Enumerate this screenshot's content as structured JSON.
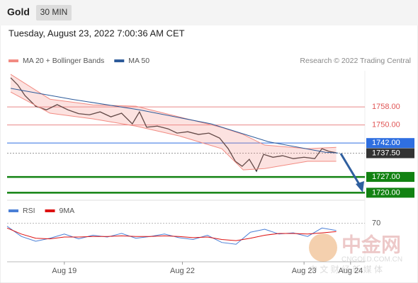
{
  "header": {
    "title": "Gold",
    "timeframe": "30 MIN",
    "timestamp": "Tuesday, August 23, 2022 7:00:36 AM CET",
    "credit": "Research © 2022 Trading Central"
  },
  "watermark": {
    "logo": "中金网",
    "url": "CNGOLD.COM.CN",
    "slogan": "中 文 财 经 新 媒 体"
  },
  "chart_data": [
    {
      "type": "line",
      "xlim": [
        0,
        100
      ],
      "ylim": [
        1717,
        1774
      ],
      "series": [
        {
          "color": "#333333",
          "x": [
            1,
            3,
            5,
            8,
            11,
            14,
            17,
            20,
            23,
            26,
            29,
            32,
            35,
            37,
            39,
            42,
            45,
            47.5,
            50.5,
            53.5,
            56.4,
            59.4,
            61.8,
            63.8,
            65.7,
            67.7,
            69.7,
            71.7,
            74.3,
            77,
            80,
            83,
            86,
            88,
            90,
            92
          ],
          "values": [
            1770.9,
            1767.7,
            1763,
            1758.3,
            1756.7,
            1759,
            1756.7,
            1755,
            1754.5,
            1755.8,
            1753.6,
            1755.2,
            1750.5,
            1755.8,
            1749,
            1749.5,
            1748.3,
            1746.4,
            1747,
            1745.8,
            1746.4,
            1744.2,
            1739.5,
            1733.9,
            1731.7,
            1734.8,
            1729.5,
            1737,
            1735.7,
            1736.4,
            1735.1,
            1735.7,
            1735.1,
            1739.5,
            1738.3,
            1737.7
          ]
        },
        {
          "name": "MA 20 + Bollinger Bands",
          "color": "#f28b82",
          "x": [
            1,
            12,
            24,
            36,
            48,
            60,
            66,
            72,
            84,
            92
          ],
          "upper": [
            1772.4,
            1761.4,
            1758.9,
            1758.3,
            1753.6,
            1748.9,
            1745.8,
            1741.1,
            1739.5,
            1740.1
          ],
          "lower": [
            1764.6,
            1755.2,
            1752.7,
            1749.5,
            1745.2,
            1739.5,
            1730.1,
            1730.7,
            1733.9,
            1733.9
          ]
        },
        {
          "name": "MA 50",
          "color": "#2d5b9a",
          "x": [
            1,
            18,
            37,
            57,
            73,
            89,
            92.5
          ],
          "values": [
            1766.2,
            1761.4,
            1756.7,
            1750.5,
            1742.6,
            1737.9,
            1737.6
          ]
        }
      ],
      "levels": {
        "values": [
          1758,
          1750,
          1742,
          1737.5,
          1727,
          1720
        ],
        "value_labels": [
          "1758.00",
          "1750.00",
          "1742.00",
          "1737.50",
          "1727.00",
          "1720.00"
        ],
        "colors": [
          "#e05555",
          "#e05555",
          "#2f6fe0",
          "#333333",
          "#128212",
          "#128212"
        ],
        "boxed": [
          false,
          false,
          true,
          true,
          true,
          true
        ],
        "dotted": [
          false,
          false,
          false,
          true,
          false,
          false
        ]
      }
    },
    {
      "type": "line",
      "xlim": [
        0,
        100
      ],
      "ylim": [
        0,
        100
      ],
      "yticks": [
        70
      ],
      "xticks": [
        {
          "value": 16,
          "label": "Aug 19"
        },
        {
          "value": 49,
          "label": "Aug 22"
        },
        {
          "value": 83,
          "label": "Aug 23"
        },
        {
          "value": 96,
          "label": "Aug 24"
        }
      ],
      "series": [
        {
          "name": "RSI",
          "color": "#4a7fd6",
          "x": [
            0,
            4,
            8,
            12,
            16,
            20,
            24,
            28,
            32,
            36,
            40,
            44,
            48,
            52,
            56,
            60,
            64,
            68,
            72,
            76,
            80,
            84,
            88,
            92
          ],
          "values": [
            65,
            48,
            40,
            45,
            52,
            44,
            50,
            47,
            53,
            45,
            48,
            52,
            46,
            43,
            50,
            38,
            35,
            55,
            60,
            52,
            54,
            48,
            62,
            58
          ]
        },
        {
          "name": "9MA",
          "color": "#dd1111",
          "x": [
            0,
            4,
            8,
            12,
            16,
            20,
            24,
            28,
            32,
            36,
            40,
            44,
            48,
            52,
            56,
            60,
            64,
            68,
            72,
            76,
            80,
            84,
            88,
            92
          ],
          "values": [
            62,
            52,
            45,
            44,
            47,
            47,
            48,
            48,
            49,
            48,
            48,
            49,
            48,
            46,
            47,
            43,
            41,
            45,
            50,
            53,
            53,
            52,
            54,
            56
          ]
        }
      ]
    }
  ]
}
